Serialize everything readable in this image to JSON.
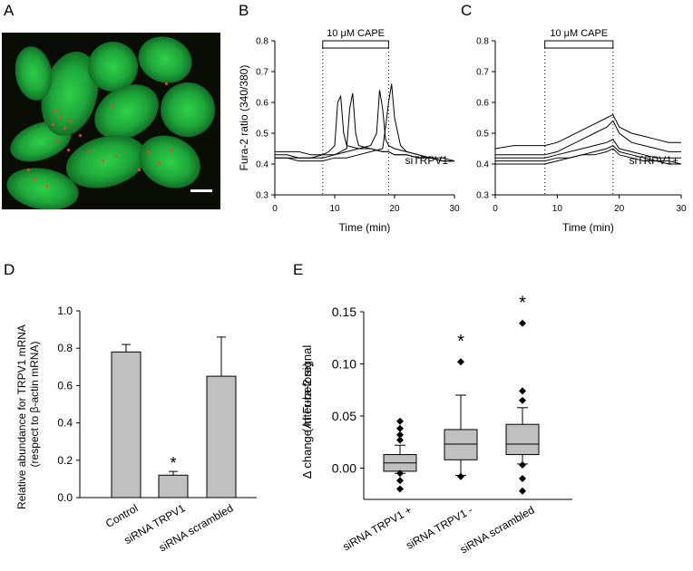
{
  "panel_labels": {
    "a": "A",
    "b": "B",
    "c": "C",
    "d": "D",
    "e": "E"
  },
  "micrograph": {
    "colors": {
      "cell": "#22c23e",
      "puncta": "#e0502a",
      "background": "#0a0d06",
      "scale_bar": "#ffffff"
    }
  },
  "chart_data": [
    {
      "panel": "B",
      "type": "line",
      "annotation": "siTRPV1-",
      "stimulus_label": "10 μM CAPE",
      "stimulus_range": [
        8,
        19
      ],
      "xlabel": "Time (min)",
      "ylabel": "Fura-2 ratio (340/380)",
      "xlim": [
        0,
        30
      ],
      "ylim": [
        0.3,
        0.8
      ],
      "xticks": [
        "0",
        "10",
        "20",
        "30"
      ],
      "yticks": [
        "0.3",
        "0.4",
        "0.5",
        "0.6",
        "0.7",
        "0.8"
      ],
      "series": [
        {
          "x": [
            0,
            2,
            4,
            6,
            8,
            9,
            10,
            10.5,
            11,
            11.5,
            12,
            14,
            16,
            18,
            19,
            20,
            22,
            24,
            26,
            28,
            30
          ],
          "y": [
            0.44,
            0.44,
            0.44,
            0.43,
            0.43,
            0.44,
            0.46,
            0.6,
            0.62,
            0.5,
            0.46,
            0.45,
            0.45,
            0.44,
            0.44,
            0.43,
            0.43,
            0.42,
            0.42,
            0.41,
            0.41
          ]
        },
        {
          "x": [
            0,
            2,
            4,
            6,
            8,
            10,
            12,
            12.5,
            13,
            13.5,
            14,
            16,
            18,
            19,
            20,
            22,
            24,
            26,
            28,
            30
          ],
          "y": [
            0.43,
            0.43,
            0.42,
            0.42,
            0.43,
            0.43,
            0.45,
            0.58,
            0.63,
            0.5,
            0.46,
            0.45,
            0.44,
            0.44,
            0.43,
            0.43,
            0.42,
            0.42,
            0.41,
            0.41
          ]
        },
        {
          "x": [
            0,
            2,
            4,
            6,
            8,
            10,
            12,
            14,
            16,
            17,
            17.5,
            18,
            18.5,
            19,
            20,
            22,
            24,
            26,
            28,
            30
          ],
          "y": [
            0.42,
            0.42,
            0.42,
            0.42,
            0.42,
            0.43,
            0.44,
            0.45,
            0.46,
            0.5,
            0.64,
            0.58,
            0.48,
            0.46,
            0.45,
            0.44,
            0.43,
            0.42,
            0.42,
            0.41
          ]
        },
        {
          "x": [
            0,
            2,
            4,
            6,
            8,
            10,
            12,
            14,
            16,
            18,
            18.5,
            19,
            19.5,
            20,
            21,
            22,
            24,
            26,
            28,
            30
          ],
          "y": [
            0.42,
            0.42,
            0.41,
            0.41,
            0.41,
            0.42,
            0.42,
            0.43,
            0.44,
            0.45,
            0.52,
            0.6,
            0.66,
            0.55,
            0.46,
            0.44,
            0.43,
            0.42,
            0.41,
            0.41
          ]
        }
      ]
    },
    {
      "panel": "C",
      "type": "line",
      "annotation": "siTRPV1+",
      "stimulus_label": "10 μM CAPE",
      "stimulus_range": [
        8,
        19
      ],
      "xlabel": "Time (min)",
      "ylabel": "",
      "xlim": [
        0,
        30
      ],
      "ylim": [
        0.3,
        0.8
      ],
      "xticks": [
        "0",
        "10",
        "20",
        "30"
      ],
      "yticks": [
        "0.3",
        "0.4",
        "0.5",
        "0.6",
        "0.7",
        "0.8"
      ],
      "series": [
        {
          "x": [
            0,
            3,
            6,
            8,
            10,
            12,
            14,
            16,
            18,
            19,
            20,
            22,
            24,
            26,
            28,
            30
          ],
          "y": [
            0.45,
            0.46,
            0.46,
            0.46,
            0.47,
            0.49,
            0.51,
            0.53,
            0.55,
            0.56,
            0.52,
            0.5,
            0.49,
            0.48,
            0.47,
            0.47
          ]
        },
        {
          "x": [
            0,
            3,
            6,
            8,
            10,
            12,
            14,
            16,
            18,
            19,
            20,
            22,
            24,
            26,
            28,
            30
          ],
          "y": [
            0.43,
            0.43,
            0.43,
            0.43,
            0.44,
            0.46,
            0.48,
            0.5,
            0.52,
            0.54,
            0.5,
            0.47,
            0.46,
            0.45,
            0.44,
            0.44
          ]
        },
        {
          "x": [
            0,
            3,
            6,
            8,
            10,
            12,
            14,
            16,
            18,
            19,
            20,
            22,
            24,
            26,
            28,
            30
          ],
          "y": [
            0.42,
            0.42,
            0.42,
            0.42,
            0.43,
            0.44,
            0.45,
            0.46,
            0.47,
            0.48,
            0.45,
            0.44,
            0.43,
            0.42,
            0.42,
            0.42
          ]
        },
        {
          "x": [
            0,
            3,
            6,
            8,
            10,
            12,
            14,
            16,
            18,
            19,
            20,
            22,
            24,
            26,
            28,
            30
          ],
          "y": [
            0.41,
            0.41,
            0.41,
            0.41,
            0.42,
            0.42,
            0.43,
            0.43,
            0.44,
            0.45,
            0.43,
            0.42,
            0.41,
            0.41,
            0.4,
            0.4
          ]
        },
        {
          "x": [
            0,
            3,
            6,
            8,
            10,
            12,
            14,
            16,
            18,
            19,
            20,
            22,
            24,
            26,
            28,
            30
          ],
          "y": [
            0.4,
            0.4,
            0.4,
            0.4,
            0.41,
            0.42,
            0.43,
            0.44,
            0.45,
            0.46,
            0.44,
            0.43,
            0.42,
            0.41,
            0.41,
            0.4
          ]
        }
      ]
    },
    {
      "panel": "D",
      "type": "bar",
      "categories": [
        "Control",
        "siRNA TRPV1",
        "siRNA scrambled"
      ],
      "values": [
        0.78,
        0.12,
        0.65
      ],
      "errors": [
        0.04,
        0.02,
        0.21
      ],
      "significance": [
        "",
        "*",
        ""
      ],
      "ylabel": [
        "Relative abundance for TRPV1 mRNA",
        "(respect to β-actin mRNA)"
      ],
      "ylim": [
        0,
        1.0
      ],
      "yticks": [
        "0.0",
        "0.2",
        "0.4",
        "0.6",
        "0.8",
        "1.0"
      ],
      "bar_color": "#c0c0c0"
    },
    {
      "panel": "E",
      "type": "box",
      "categories": [
        "siRNA TRPV1 +",
        "siRNA TRPV1 -",
        "siRNA scrambled"
      ],
      "boxes": [
        {
          "whisker_low": -0.005,
          "q1": -0.003,
          "median": 0.005,
          "q3": 0.013,
          "whisker_high": 0.022,
          "outliers": [
            -0.005,
            -0.012,
            -0.02,
            0.027,
            0.032,
            0.038,
            0.045
          ],
          "significance": ""
        },
        {
          "whisker_low": -0.007,
          "q1": 0.008,
          "median": 0.023,
          "q3": 0.037,
          "whisker_high": 0.07,
          "outliers": [
            -0.008,
            0.102
          ],
          "significance": "*"
        },
        {
          "whisker_low": 0.004,
          "q1": 0.013,
          "median": 0.023,
          "q3": 0.042,
          "whisker_high": 0.058,
          "outliers": [
            0.003,
            -0.01,
            -0.022,
            0.065,
            0.074,
            0.139
          ],
          "significance": "*"
        }
      ],
      "ylabel": [
        "Δ change in Fura-2 signal",
        "(After-before)"
      ],
      "ylim": [
        -0.03,
        0.15
      ],
      "yticks": [
        "0.00",
        "0.05",
        "0.10",
        "0.15"
      ],
      "box_color": "#c0c0c0"
    }
  ]
}
